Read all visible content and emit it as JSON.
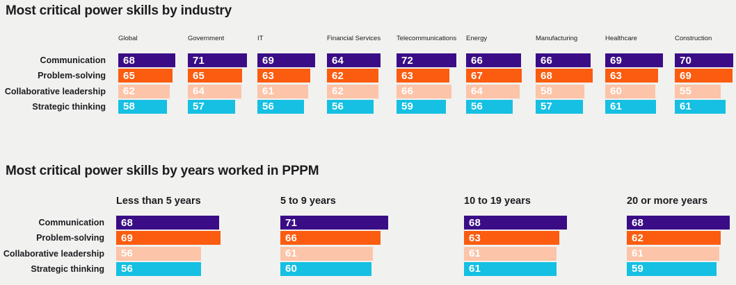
{
  "colors": {
    "background": "#f1f1ef",
    "text": "#1d1b1f",
    "bar_value_text": "#ffffff",
    "series_colors": [
      "#3a0d86",
      "#fb5c0f",
      "#fcc4a9",
      "#15c0e2"
    ]
  },
  "chart_data": [
    {
      "type": "bar",
      "orientation": "horizontal",
      "title": "Most critical power skills by industry",
      "categories": [
        "Global",
        "Government",
        "IT",
        "Financial Services",
        "Telecommunications",
        "Energy",
        "Manufacturing",
        "Healthcare",
        "Construction"
      ],
      "series": [
        {
          "name": "Communication",
          "values": [
            68,
            71,
            69,
            64,
            72,
            66,
            66,
            69,
            70
          ]
        },
        {
          "name": "Problem-solving",
          "values": [
            65,
            65,
            63,
            62,
            63,
            67,
            68,
            63,
            69
          ]
        },
        {
          "name": "Collaborative leadership",
          "values": [
            62,
            64,
            61,
            62,
            66,
            64,
            58,
            60,
            55
          ]
        },
        {
          "name": "Strategic thinking",
          "values": [
            58,
            57,
            56,
            56,
            59,
            56,
            57,
            61,
            61
          ]
        }
      ],
      "value_range": [
        0,
        100
      ],
      "grid": false,
      "legend": "none",
      "data_labels": "inside-left"
    },
    {
      "type": "bar",
      "orientation": "horizontal",
      "title": "Most critical power skills by years worked in PPPM",
      "categories": [
        "Less than 5 years",
        "5 to 9 years",
        "10 to 19 years",
        "20 or more years"
      ],
      "series": [
        {
          "name": "Communication",
          "values": [
            68,
            71,
            68,
            68
          ]
        },
        {
          "name": "Problem-solving",
          "values": [
            69,
            66,
            63,
            62
          ]
        },
        {
          "name": "Collaborative leadership",
          "values": [
            56,
            61,
            61,
            61
          ]
        },
        {
          "name": "Strategic thinking",
          "values": [
            56,
            60,
            61,
            59
          ]
        }
      ],
      "value_range": [
        0,
        100
      ],
      "grid": false,
      "legend": "none",
      "data_labels": "inside-left"
    }
  ]
}
